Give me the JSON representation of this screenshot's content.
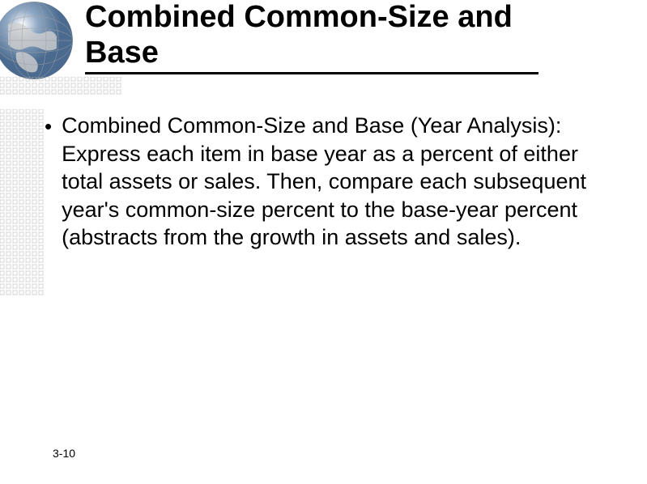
{
  "title": "Combined Common-Size and Base",
  "bullet": {
    "heading": "Combined Common-Size and Base (Year Analysis):",
    "body": "Express each item in base year as a percent of either total assets or sales. Then, compare each subsequent year's common-size percent to the base-year percent (abstracts from the growth in assets and sales)."
  },
  "page_number": "3-10",
  "decoration": {
    "dot_border_color": "#b8b8b8",
    "globe_colors": {
      "water": "#6b8eb5",
      "land": "#d8d8d8",
      "grid": "#a0a0a0",
      "highlight": "#ffffff"
    }
  }
}
